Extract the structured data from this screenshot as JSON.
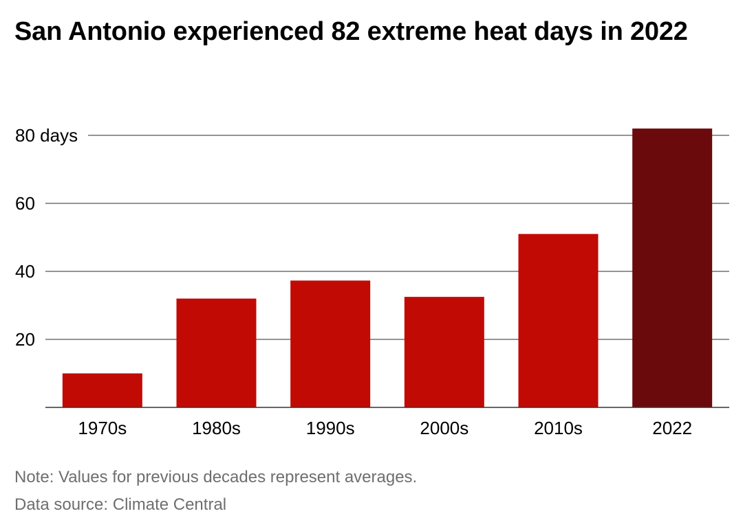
{
  "title": "San Antonio experienced 82 extreme heat days in 2022",
  "note": "Note: Values for previous decades represent averages.",
  "source": "Data source: Climate Central",
  "colors": {
    "bar": "#c20a05",
    "highlight_bar": "#6b0a0c",
    "grid": "#555555",
    "text": "#000000",
    "footnote": "#6e6e6e"
  },
  "chart_data": {
    "type": "bar",
    "categories": [
      "1970s",
      "1980s",
      "1990s",
      "2000s",
      "2010s",
      "2022"
    ],
    "values": [
      10,
      32,
      37.3,
      32.5,
      51,
      82
    ],
    "highlight_index": 5,
    "title": "San Antonio experienced 82 extreme heat days in 2022",
    "xlabel": "",
    "ylabel": "",
    "ylim": [
      0,
      80
    ],
    "yticks": [
      20,
      40,
      60,
      80
    ],
    "ytick_labels": [
      "20",
      "40",
      "60",
      "80 days"
    ],
    "grid": true,
    "legend": "none"
  }
}
